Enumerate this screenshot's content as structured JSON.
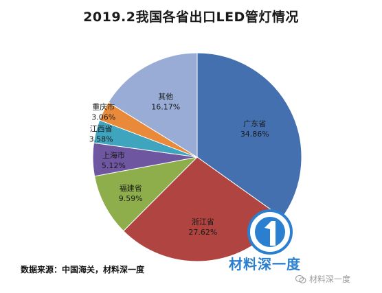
{
  "title": "2019.2我国各省出口LED管灯情况",
  "source_text": "数据来源：中国海关，材料深一度",
  "brand_text": "材料深一度",
  "watermark_text": "材料深一度",
  "chart_data": {
    "type": "pie",
    "title": "2019.2我国各省出口LED管灯情况",
    "slices": [
      {
        "label": "广东省",
        "value": 34.86,
        "display": "34.86%",
        "color": "#4470B0"
      },
      {
        "label": "浙江省",
        "value": 27.62,
        "display": "27.62%",
        "color": "#B04440"
      },
      {
        "label": "福建省",
        "value": 9.59,
        "display": "9.59%",
        "color": "#8DAE4A"
      },
      {
        "label": "上海市",
        "value": 5.12,
        "display": "5.12%",
        "color": "#6E56A0"
      },
      {
        "label": "江西省",
        "value": 3.58,
        "display": "3.58%",
        "color": "#3FA4BE"
      },
      {
        "label": "重庆市",
        "value": 3.06,
        "display": "3.06%",
        "color": "#E88A3A"
      },
      {
        "label": "其他",
        "value": 16.17,
        "display": "16.17%",
        "color": "#98ACD6"
      }
    ],
    "start_angle_deg": 0,
    "direction": "clockwise",
    "legend": "none"
  }
}
